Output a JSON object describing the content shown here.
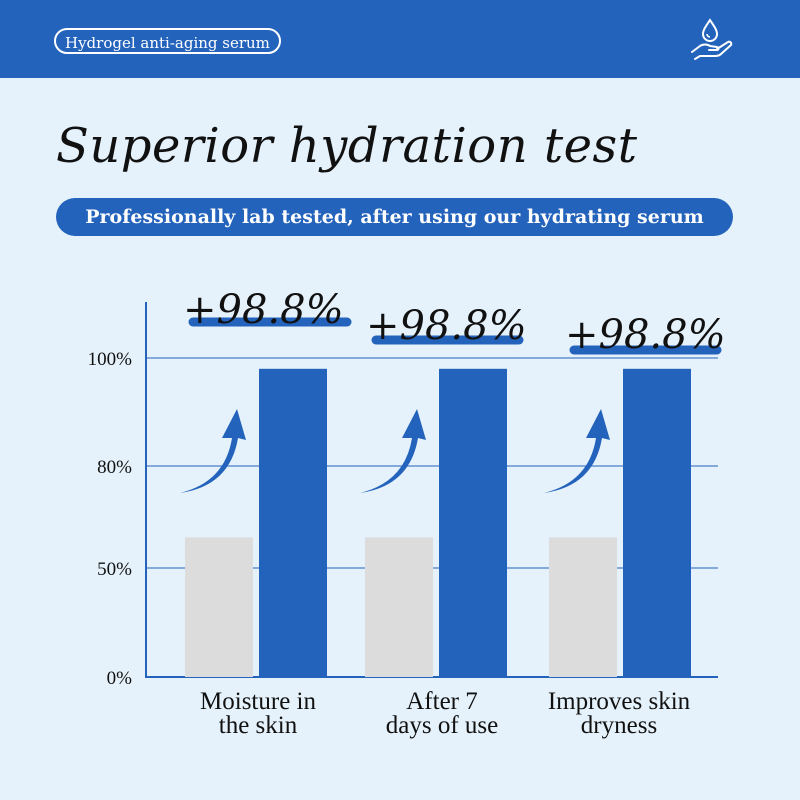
{
  "header": {
    "product_tag": "Hydrogel anti-aging serum",
    "icon": "water-drop-hand-icon"
  },
  "main": {
    "title": "Superior hydration test",
    "subtitle": "Professionally lab tested, after using our hydrating serum"
  },
  "colors": {
    "accent": "#2463bc",
    "panel_bg": "#e5f2fb",
    "before_bar": "#dcdcdc",
    "after_bar": "#2463bc"
  },
  "chart_data": {
    "type": "bar",
    "categories": [
      [
        "Moisture in",
        "the skin"
      ],
      [
        "After 7",
        "days of use"
      ],
      [
        "Improves skin",
        "dryness"
      ]
    ],
    "series": [
      {
        "values": [
          59,
          59,
          59
        ]
      },
      {
        "values": [
          98,
          98,
          98
        ]
      }
    ],
    "annotations": [
      "+98.8%",
      "+98.8%",
      "+98.8%"
    ],
    "y_ticks": [
      "0%",
      "50%",
      "80%",
      "100%"
    ],
    "grid": true
  }
}
